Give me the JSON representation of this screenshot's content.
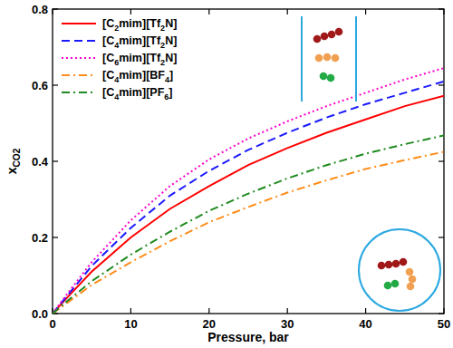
{
  "chart_data": {
    "type": "line",
    "x_label": "Pressure, bar",
    "y_label": "xCO2",
    "x": [
      0,
      2,
      5,
      10,
      15,
      20,
      25,
      30,
      35,
      40,
      45,
      50
    ],
    "series": [
      {
        "name": "[C2mim][Tf2N]",
        "color": "#ff0000",
        "line_style": "solid",
        "values": [
          0,
          0.045,
          0.11,
          0.2,
          0.275,
          0.335,
          0.39,
          0.435,
          0.475,
          0.51,
          0.545,
          0.572
        ]
      },
      {
        "name": "[C4mim][Tf2N]",
        "color": "#1a1aff",
        "line_style": "dashed",
        "values": [
          0,
          0.05,
          0.125,
          0.225,
          0.31,
          0.375,
          0.43,
          0.475,
          0.515,
          0.55,
          0.58,
          0.61
        ]
      },
      {
        "name": "[C6mim][Tf2N]",
        "color": "#ff00cc",
        "line_style": "dotted",
        "values": [
          0,
          0.055,
          0.135,
          0.245,
          0.335,
          0.405,
          0.46,
          0.505,
          0.545,
          0.58,
          0.615,
          0.645
        ]
      },
      {
        "name": "[C4mim][BF4]",
        "color": "#ff8c1a",
        "line_style": "dashdot",
        "values": [
          0,
          0.03,
          0.075,
          0.135,
          0.19,
          0.24,
          0.28,
          0.318,
          0.35,
          0.38,
          0.403,
          0.425
        ]
      },
      {
        "name": "[C4mim][PF6]",
        "color": "#1f8a1f",
        "line_style": "dashdot",
        "values": [
          0,
          0.035,
          0.085,
          0.155,
          0.215,
          0.27,
          0.315,
          0.355,
          0.39,
          0.42,
          0.445,
          0.468
        ]
      }
    ],
    "xlim": [
      0,
      50
    ],
    "ylim": [
      0,
      0.8
    ],
    "xticks": [
      0,
      10,
      20,
      30,
      40,
      50
    ],
    "yticks": [
      {
        "value": 0,
        "label": "0.0"
      },
      0.2,
      0.4,
      0.6,
      0.8
    ],
    "legend": "top-left",
    "grid": false
  }
}
